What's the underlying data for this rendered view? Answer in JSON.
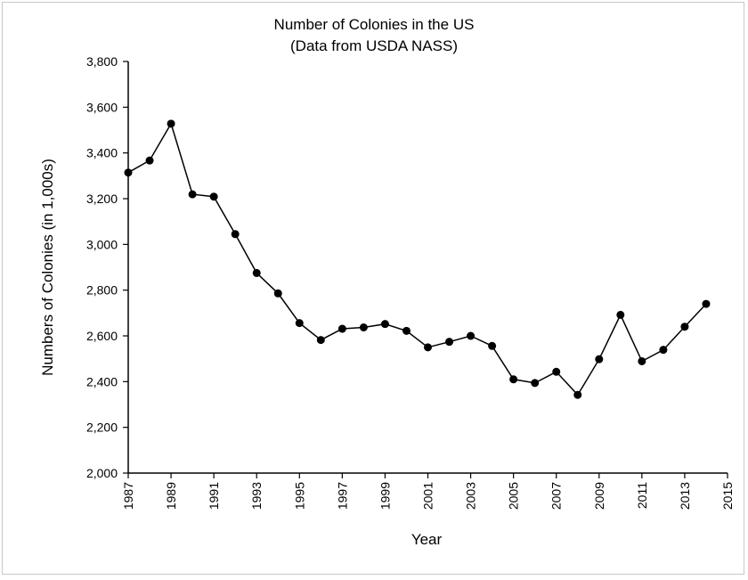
{
  "chart_data": {
    "type": "line",
    "title": "Number of Colonies in the US",
    "subtitle": "(Data from USDA NASS)",
    "xlabel": "Year",
    "ylabel": "Numbers of Colonies (in 1,000s)",
    "xlim": [
      1987,
      2015
    ],
    "ylim": [
      2000,
      3800
    ],
    "x_ticks": [
      "1987",
      "1989",
      "1991",
      "1993",
      "1995",
      "1997",
      "1999",
      "2001",
      "2003",
      "2005",
      "2007",
      "2009",
      "2011",
      "2013",
      "2015"
    ],
    "y_ticks": [
      "2,000",
      "2,200",
      "2,400",
      "2,600",
      "2,800",
      "3,000",
      "3,200",
      "3,400",
      "3,600",
      "3,800"
    ],
    "grid": false,
    "line_color": "#000000",
    "marker_color": "#000000",
    "series": [
      {
        "x": [
          1987,
          1988,
          1989,
          1990,
          1991,
          1992,
          1993,
          1994,
          1995,
          1996,
          1997,
          1998,
          1999,
          2000,
          2001,
          2002,
          2003,
          2004,
          2005,
          2006,
          2007,
          2008,
          2009,
          2010,
          2011,
          2012,
          2013,
          2014
        ],
        "values": [
          3314,
          3367,
          3528,
          3219,
          3209,
          3045,
          2875,
          2786,
          2656,
          2582,
          2631,
          2637,
          2652,
          2622,
          2550,
          2574,
          2600,
          2556,
          2410,
          2394,
          2443,
          2342,
          2498,
          2692,
          2489,
          2539,
          2640,
          2740
        ]
      }
    ]
  }
}
